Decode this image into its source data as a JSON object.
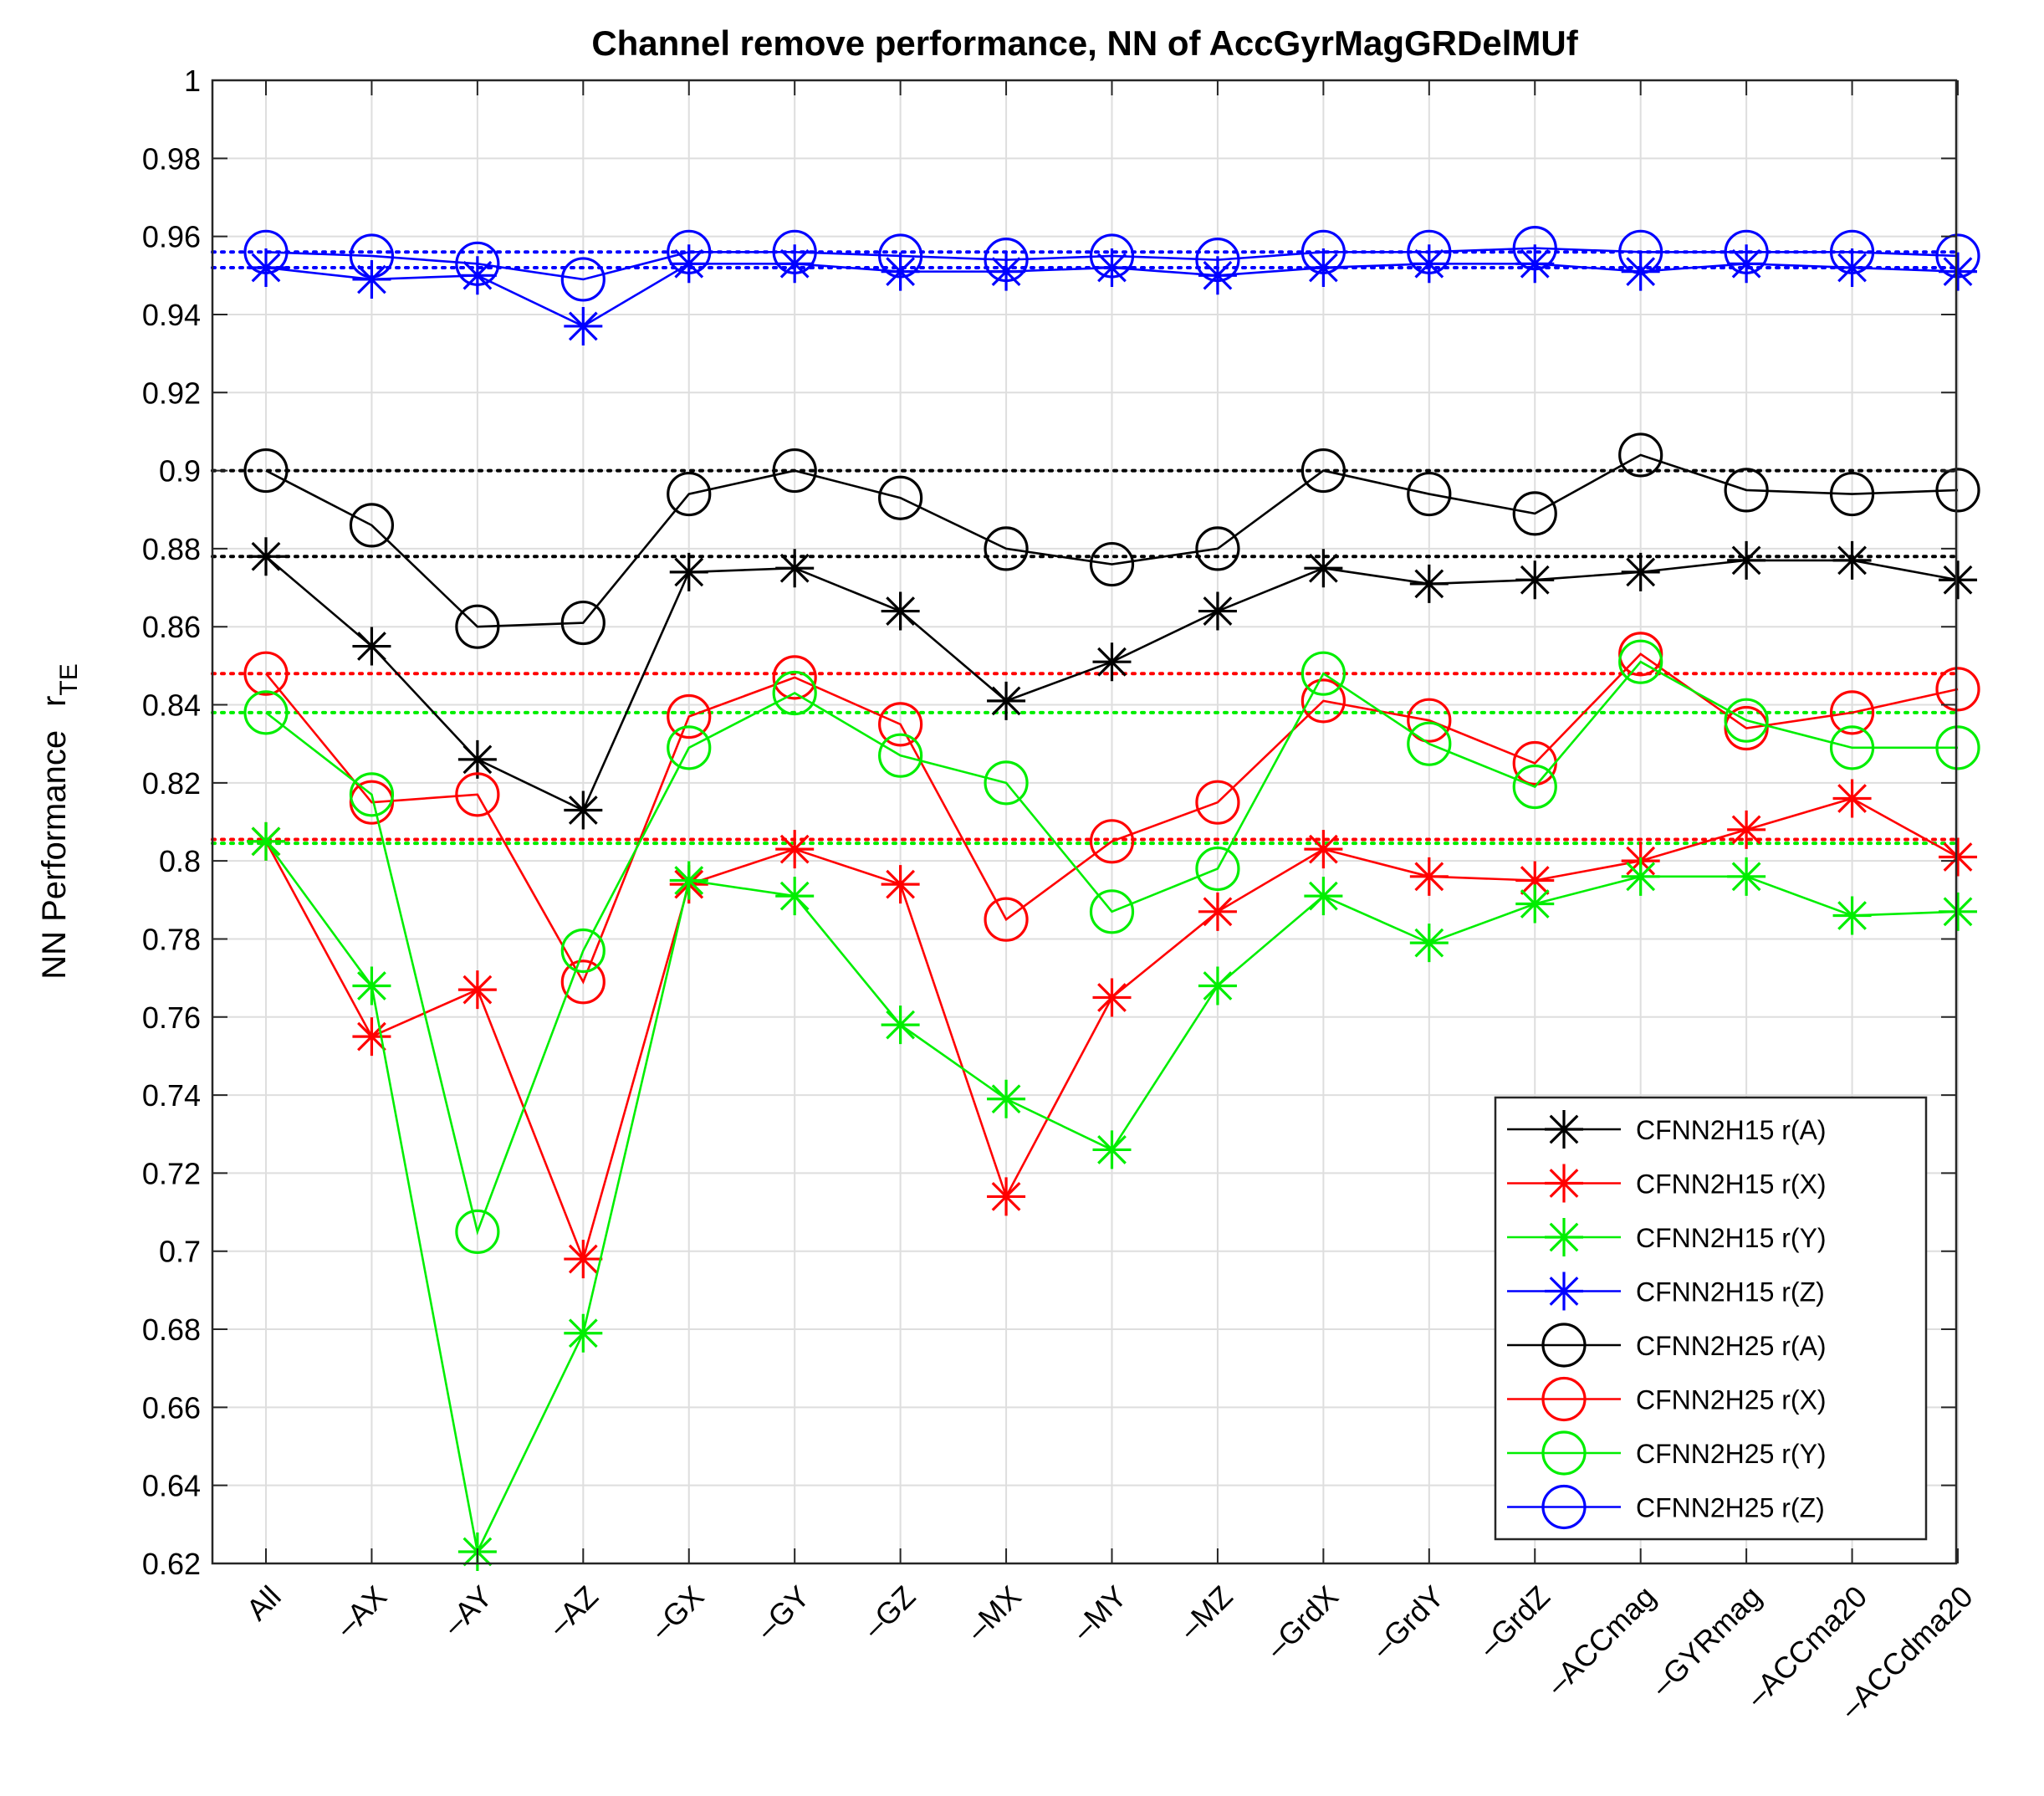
{
  "chart_data": {
    "type": "line",
    "title": "Channel remove performance, NN of AccGyrMagGRDelMUf",
    "xlabel": "",
    "ylabel": "NN Performance",
    "ylabel_symbol": "r",
    "ylabel_subscript": "TE",
    "ylim": [
      0.62,
      1.0
    ],
    "yticks": [
      "0.62",
      "0.64",
      "0.66",
      "0.68",
      "0.7",
      "0.72",
      "0.74",
      "0.76",
      "0.78",
      "0.8",
      "0.82",
      "0.84",
      "0.86",
      "0.88",
      "0.9",
      "0.92",
      "0.94",
      "0.96",
      "0.98",
      "1"
    ],
    "grid": true,
    "legend_position": "bottom-right",
    "categories": [
      "All",
      "–AX",
      "–AY",
      "–AZ",
      "–GX",
      "–GY",
      "–GZ",
      "–MX",
      "–MY",
      "–MZ",
      "–GrdX",
      "–GrdY",
      "–GrdZ",
      "–ACCmag",
      "–GYRmag",
      "–ACCma20",
      "–ACCdma20"
    ],
    "colors": {
      "black": "#000000",
      "red": "#ff0000",
      "green": "#00ee00",
      "blue": "#0000ff"
    },
    "series": [
      {
        "name": "CFNN2H15 r(A)",
        "color": "black",
        "marker": "asterisk",
        "values": [
          0.878,
          0.855,
          0.826,
          0.813,
          0.874,
          0.875,
          0.864,
          0.841,
          0.851,
          0.864,
          0.875,
          0.871,
          0.872,
          0.874,
          0.877,
          0.877,
          0.872
        ]
      },
      {
        "name": "CFNN2H15 r(X)",
        "color": "red",
        "marker": "asterisk",
        "values": [
          0.805,
          0.755,
          0.767,
          0.698,
          0.794,
          0.803,
          0.794,
          0.714,
          0.765,
          0.787,
          0.803,
          0.796,
          0.795,
          0.8,
          0.808,
          0.816,
          0.801
        ]
      },
      {
        "name": "CFNN2H15 r(Y)",
        "color": "green",
        "marker": "asterisk",
        "values": [
          0.805,
          0.768,
          0.623,
          0.679,
          0.795,
          0.791,
          0.758,
          0.739,
          0.726,
          0.768,
          0.791,
          0.779,
          0.789,
          0.796,
          0.796,
          0.786,
          0.787
        ]
      },
      {
        "name": "CFNN2H15 r(Z)",
        "color": "blue",
        "marker": "asterisk",
        "values": [
          0.952,
          0.949,
          0.95,
          0.937,
          0.953,
          0.953,
          0.951,
          0.951,
          0.952,
          0.95,
          0.952,
          0.953,
          0.953,
          0.951,
          0.953,
          0.952,
          0.951
        ]
      },
      {
        "name": "CFNN2H25 r(A)",
        "color": "black",
        "marker": "circle",
        "values": [
          0.9,
          0.886,
          0.86,
          0.861,
          0.894,
          0.9,
          0.893,
          0.88,
          0.876,
          0.88,
          0.9,
          0.894,
          0.889,
          0.904,
          0.895,
          0.894,
          0.895
        ]
      },
      {
        "name": "CFNN2H25 r(X)",
        "color": "red",
        "marker": "circle",
        "values": [
          0.848,
          0.815,
          0.817,
          0.769,
          0.837,
          0.847,
          0.835,
          0.785,
          0.805,
          0.815,
          0.841,
          0.836,
          0.825,
          0.853,
          0.834,
          0.838,
          0.844
        ]
      },
      {
        "name": "CFNN2H25 r(Y)",
        "color": "green",
        "marker": "circle",
        "values": [
          0.838,
          0.817,
          0.705,
          0.777,
          0.829,
          0.843,
          0.827,
          0.82,
          0.787,
          0.798,
          0.848,
          0.83,
          0.819,
          0.851,
          0.836,
          0.829,
          0.829
        ]
      },
      {
        "name": "CFNN2H25 r(Z)",
        "color": "blue",
        "marker": "circle",
        "values": [
          0.956,
          0.955,
          0.953,
          0.949,
          0.956,
          0.956,
          0.955,
          0.954,
          0.955,
          0.954,
          0.956,
          0.956,
          0.957,
          0.956,
          0.956,
          0.956,
          0.955
        ]
      }
    ],
    "reference_lines": [
      {
        "value": 0.9,
        "color": "black"
      },
      {
        "value": 0.878,
        "color": "black"
      },
      {
        "value": 0.848,
        "color": "red"
      },
      {
        "value": 0.838,
        "color": "green"
      },
      {
        "value": 0.8055,
        "color": "red"
      },
      {
        "value": 0.8045,
        "color": "green"
      },
      {
        "value": 0.956,
        "color": "blue"
      },
      {
        "value": 0.952,
        "color": "blue"
      }
    ]
  }
}
